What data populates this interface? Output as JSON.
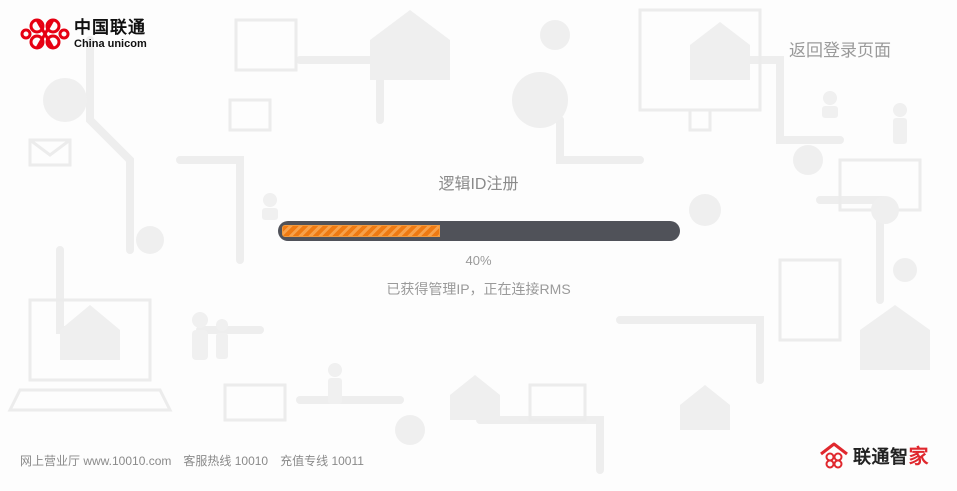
{
  "header": {
    "logo_cn": "中国联通",
    "logo_en": "China unicom",
    "back_link": "返回登录页面"
  },
  "main": {
    "title": "逻辑ID注册",
    "progress": 40,
    "progress_text": "40%",
    "status": "已获得管理IP，正在连接RMS"
  },
  "footer": {
    "website": "网上营业厅 www.10010.com",
    "hotline": "客服热线 10010",
    "recharge": "充值专线 10011"
  },
  "brand": {
    "name_main": "联通智",
    "name_accent": "家"
  },
  "colors": {
    "brand_red": "#e0282e",
    "progress_orange": "#ef7a12",
    "track": "#505259"
  }
}
